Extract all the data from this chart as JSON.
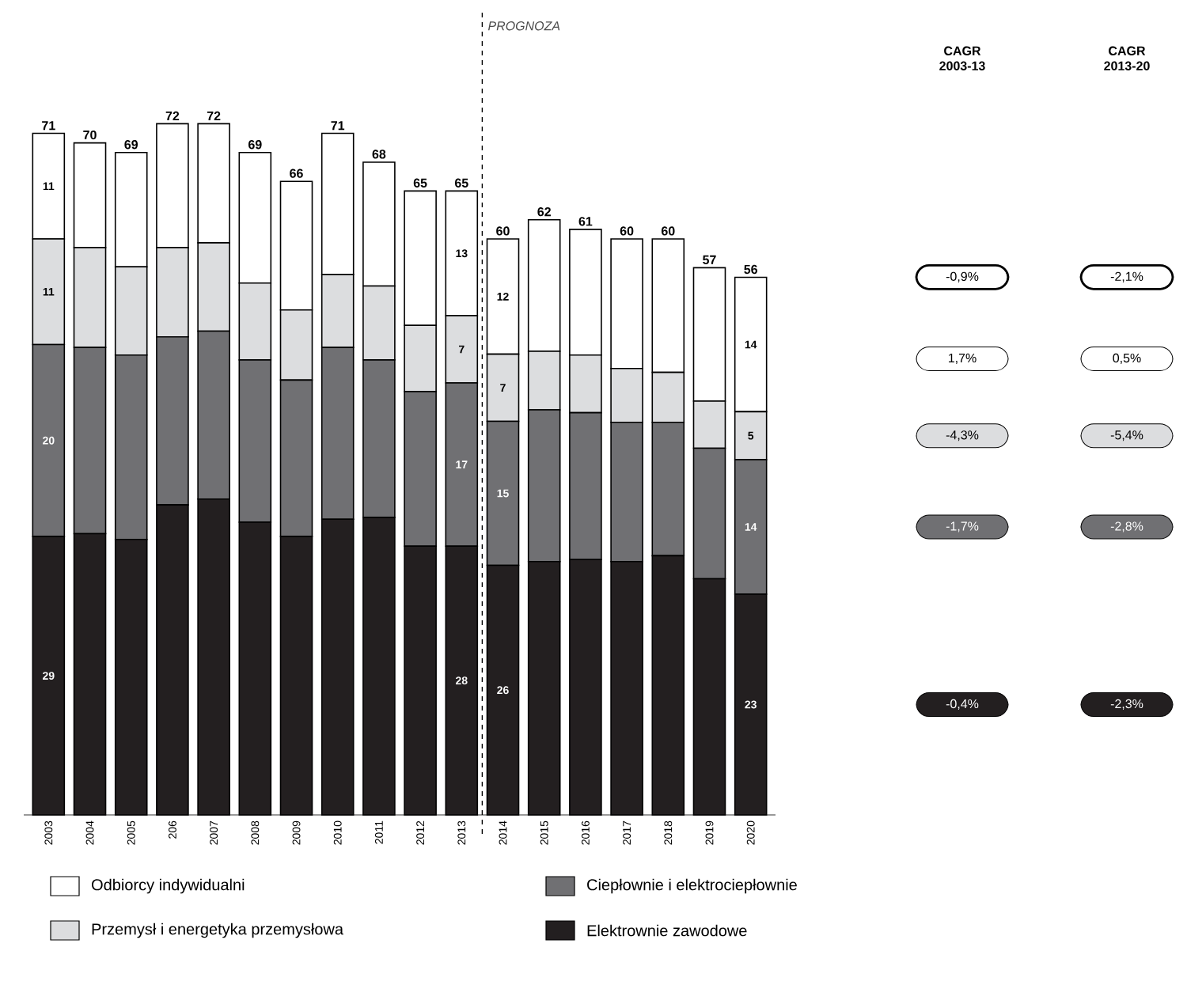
{
  "chart_data": {
    "type": "bar",
    "stacked": true,
    "legend": "bottom",
    "categories": [
      "2003",
      "2004",
      "2005",
      "206",
      "2007",
      "2008",
      "2009",
      "2010",
      "2011",
      "2012",
      "2013",
      "2014",
      "2015",
      "2016",
      "2017",
      "2018",
      "2019",
      "2020"
    ],
    "series": [
      {
        "name": "Elektrownie zawodowe",
        "color": "#231f20",
        "values": [
          29,
          29.3,
          28.7,
          32.3,
          32.9,
          30.5,
          29.0,
          30.8,
          31.0,
          28.0,
          28,
          26,
          26.4,
          26.6,
          26.4,
          27.0,
          24.6,
          23
        ],
        "value_labels": [
          "29",
          null,
          null,
          null,
          null,
          null,
          null,
          null,
          null,
          null,
          "28",
          "26",
          null,
          null,
          null,
          null,
          null,
          "23"
        ]
      },
      {
        "name": "Ciepłownie i elektrociepłownie",
        "color": "#707073",
        "values": [
          20,
          19.4,
          19.2,
          17.5,
          17.5,
          16.9,
          16.3,
          17.9,
          16.4,
          16.1,
          17,
          15,
          15.8,
          15.3,
          14.5,
          13.9,
          13.6,
          14
        ],
        "value_labels": [
          "20",
          null,
          null,
          null,
          null,
          null,
          null,
          null,
          null,
          null,
          "17",
          "15",
          null,
          null,
          null,
          null,
          null,
          "14"
        ]
      },
      {
        "name": "Przemysł i energetyka przemysłowa",
        "color": "#dcdddf",
        "values": [
          11,
          10.4,
          9.2,
          9.3,
          9.2,
          8.0,
          7.3,
          7.6,
          7.7,
          6.9,
          7,
          7,
          6.1,
          6.0,
          5.6,
          5.2,
          4.9,
          5
        ],
        "value_labels": [
          "11",
          null,
          null,
          null,
          null,
          null,
          null,
          null,
          null,
          null,
          "7",
          "7",
          null,
          null,
          null,
          null,
          null,
          "5"
        ]
      },
      {
        "name": "Odbiorcy indywidualni",
        "color": "#ffffff",
        "values": [
          11,
          10.9,
          11.9,
          12.9,
          12.4,
          13.6,
          13.4,
          14.7,
          12.9,
          14.0,
          13,
          12,
          13.7,
          13.1,
          13.5,
          13.9,
          13.9,
          14
        ],
        "value_labels": [
          "11",
          null,
          null,
          null,
          null,
          null,
          null,
          null,
          null,
          null,
          "13",
          "12",
          null,
          null,
          null,
          null,
          null,
          "14"
        ]
      }
    ],
    "totals": [
      "71",
      "70",
      "69",
      "72",
      "72",
      "69",
      "66",
      "71",
      "68",
      "65",
      "65",
      "60",
      "62",
      "61",
      "60",
      "60",
      "57",
      "56"
    ],
    "annotations": [
      "PROGNOZA",
      "CAGR 2003-13",
      "CAGR 2013-20",
      "-0,9%",
      "1,7%",
      "-4,3%",
      "-1,7%",
      "-0,4%",
      "-2,1%",
      "0,5%",
      "-5,4%",
      "-2,8%",
      "-2,3%"
    ]
  }
}
